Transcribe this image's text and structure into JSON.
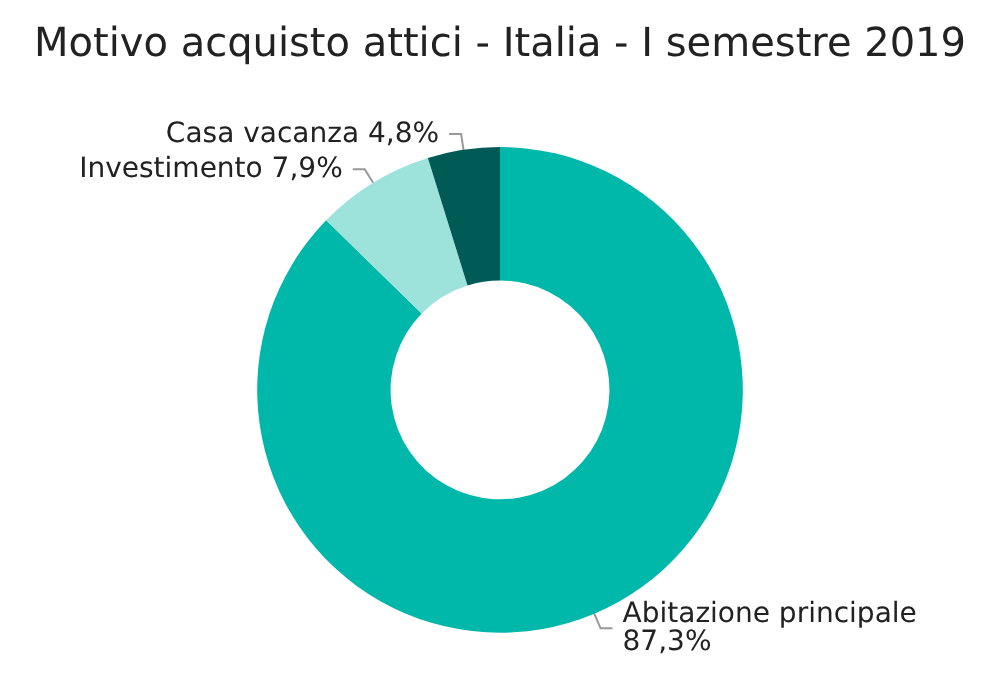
{
  "chart_data": {
    "type": "donut",
    "title": "Motivo acquisto attici - Italia - I semestre 2019",
    "categories": [
      "Abitazione principale",
      "Investimento",
      "Casa vacanza"
    ],
    "values": [
      87.3,
      7.9,
      4.8
    ],
    "value_labels": [
      "87,3%",
      "7,9%",
      "4,8%"
    ],
    "colors": [
      "#00b8aa",
      "#9de3dc",
      "#005a55"
    ],
    "legend": false
  }
}
